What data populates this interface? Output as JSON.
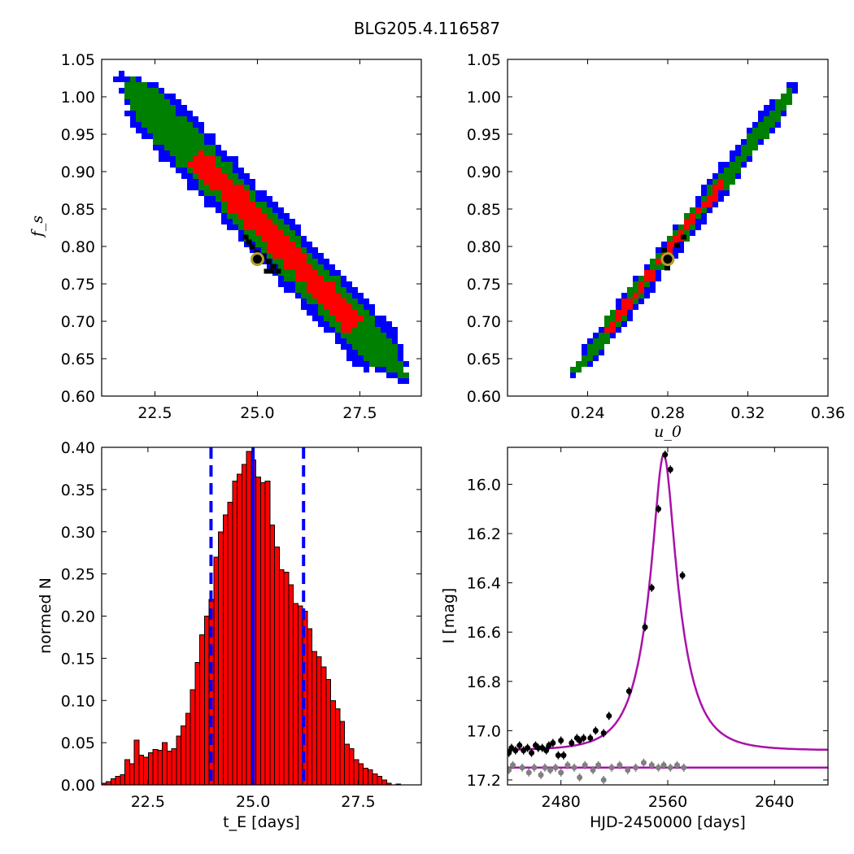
{
  "figure_title": "BLG205.4.116587",
  "chart_data": [
    {
      "id": "tl",
      "type": "heatmap",
      "title": "",
      "xlabel": "",
      "ylabel": "f_s",
      "xlim": [
        21.2,
        29.0
      ],
      "ylim": [
        0.6,
        1.05
      ],
      "xticks": [
        22.5,
        25.0,
        27.5
      ],
      "yticks": [
        0.6,
        0.65,
        0.7,
        0.75,
        0.8,
        0.85,
        0.9,
        0.95,
        1.0,
        1.05
      ],
      "colors": {
        "outer": "#0000ff",
        "middle": "#008000",
        "inner": "#ff0000",
        "best": "#000000"
      },
      "ridge": [
        {
          "x": 21.7,
          "y": 1.025
        },
        {
          "x": 28.6,
          "y": 0.625
        }
      ],
      "regions": [
        {
          "level": "3-sigma",
          "color": "#0000ff",
          "x_range": [
            21.5,
            28.9
          ]
        },
        {
          "level": "2-sigma",
          "color": "#008000",
          "x_range": [
            21.8,
            28.6
          ]
        },
        {
          "level": "1-sigma",
          "color": "#ff0000",
          "x_range": [
            23.5,
            27.4
          ]
        }
      ],
      "best_fit": {
        "x": 25.0,
        "y": 0.783
      }
    },
    {
      "id": "tr",
      "type": "heatmap",
      "title": "",
      "xlabel": "u_0",
      "ylabel": "",
      "xlim": [
        0.2,
        0.36
      ],
      "ylim": [
        0.6,
        1.05
      ],
      "xticks": [
        0.24,
        0.28,
        0.32,
        0.36
      ],
      "yticks": [
        0.6,
        0.65,
        0.7,
        0.75,
        0.8,
        0.85,
        0.9,
        0.95,
        1.0,
        1.05
      ],
      "colors": {
        "outer": "#0000ff",
        "middle": "#008000",
        "inner": "#ff0000",
        "best": "#000000"
      },
      "ridge": [
        {
          "x": 0.232,
          "y": 0.625
        },
        {
          "x": 0.346,
          "y": 1.022
        }
      ],
      "regions": [
        {
          "level": "3-sigma",
          "color": "#0000ff",
          "x_range": [
            0.232,
            0.346
          ]
        },
        {
          "level": "2-sigma",
          "color": "#008000",
          "x_range": [
            0.234,
            0.342
          ]
        },
        {
          "level": "1-sigma",
          "color": "#ff0000",
          "x_range": [
            0.25,
            0.307
          ]
        }
      ],
      "best_fit": {
        "x": 0.28,
        "y": 0.783
      }
    },
    {
      "id": "bl",
      "type": "bar",
      "title": "",
      "xlabel": "t_E [days]",
      "ylabel": "normed N",
      "xlim": [
        21.4,
        29.0
      ],
      "ylim": [
        0.0,
        0.4
      ],
      "xticks": [
        22.5,
        25.0,
        27.5
      ],
      "yticks": [
        0.0,
        0.05,
        0.1,
        0.15,
        0.2,
        0.25,
        0.3,
        0.35,
        0.4
      ],
      "bar_color": "#ff0000",
      "bin_start": 21.4,
      "bin_width": 0.1111,
      "values": [
        0.002,
        0.004,
        0.007,
        0.01,
        0.012,
        0.03,
        0.025,
        0.053,
        0.035,
        0.033,
        0.038,
        0.042,
        0.041,
        0.05,
        0.04,
        0.043,
        0.058,
        0.07,
        0.085,
        0.113,
        0.145,
        0.178,
        0.2,
        0.22,
        0.27,
        0.3,
        0.32,
        0.335,
        0.36,
        0.368,
        0.38,
        0.395,
        0.385,
        0.365,
        0.358,
        0.36,
        0.308,
        0.282,
        0.255,
        0.252,
        0.237,
        0.215,
        0.212,
        0.206,
        0.185,
        0.158,
        0.152,
        0.14,
        0.125,
        0.1,
        0.09,
        0.075,
        0.048,
        0.043,
        0.03,
        0.025,
        0.02,
        0.018,
        0.013,
        0.01,
        0.006,
        0.002,
        0.0,
        0.001,
        0.0
      ],
      "vlines": [
        {
          "x": 24.0,
          "style": "dashed",
          "color": "#0000ff"
        },
        {
          "x": 25.0,
          "style": "solid",
          "color": "#0000ff"
        },
        {
          "x": 26.2,
          "style": "dashed",
          "color": "#0000ff"
        }
      ]
    },
    {
      "id": "br",
      "type": "scatter",
      "title": "",
      "xlabel": "HJD-2450000 [days]",
      "ylabel": "I [mag]",
      "xlim": [
        2440,
        2680
      ],
      "ylim": [
        17.22,
        15.85
      ],
      "xticks": [
        2480,
        2560,
        2640
      ],
      "yticks": [
        16.0,
        16.2,
        16.4,
        16.6,
        16.8,
        17.0,
        17.2
      ],
      "model_color": "#aa11aa",
      "model": {
        "baseline": 17.08,
        "peak": 15.88,
        "t0": 2557,
        "tE": 25.0,
        "u0": 0.28,
        "fs": 0.783
      },
      "model_flat": {
        "value": 17.15,
        "color": "#aa11aa"
      },
      "series": [
        {
          "name": "",
          "color": "#000000",
          "points": [
            {
              "x": 2441,
              "y": 17.09
            },
            {
              "x": 2443,
              "y": 17.07
            },
            {
              "x": 2446,
              "y": 17.08
            },
            {
              "x": 2449,
              "y": 17.06
            },
            {
              "x": 2452,
              "y": 17.08
            },
            {
              "x": 2455,
              "y": 17.07
            },
            {
              "x": 2458,
              "y": 17.09
            },
            {
              "x": 2461,
              "y": 17.06
            },
            {
              "x": 2463,
              "y": 17.07
            },
            {
              "x": 2466,
              "y": 17.07
            },
            {
              "x": 2469,
              "y": 17.08
            },
            {
              "x": 2471,
              "y": 17.06
            },
            {
              "x": 2474,
              "y": 17.05
            },
            {
              "x": 2478,
              "y": 17.1
            },
            {
              "x": 2480,
              "y": 17.04
            },
            {
              "x": 2482,
              "y": 17.1
            },
            {
              "x": 2488,
              "y": 17.05
            },
            {
              "x": 2492,
              "y": 17.03
            },
            {
              "x": 2494,
              "y": 17.04
            },
            {
              "x": 2497,
              "y": 17.03
            },
            {
              "x": 2502,
              "y": 17.03
            },
            {
              "x": 2506,
              "y": 17.0
            },
            {
              "x": 2512,
              "y": 17.01
            },
            {
              "x": 2516,
              "y": 16.94
            },
            {
              "x": 2531,
              "y": 16.84
            },
            {
              "x": 2543,
              "y": 16.58
            },
            {
              "x": 2548,
              "y": 16.42
            },
            {
              "x": 2553,
              "y": 16.1
            },
            {
              "x": 2558,
              "y": 15.88
            },
            {
              "x": 2562,
              "y": 15.94
            },
            {
              "x": 2571,
              "y": 16.37
            }
          ]
        },
        {
          "name": "",
          "color": "#808080",
          "points": [
            {
              "x": 2441,
              "y": 17.16
            },
            {
              "x": 2444,
              "y": 17.14
            },
            {
              "x": 2451,
              "y": 17.15
            },
            {
              "x": 2456,
              "y": 17.17
            },
            {
              "x": 2460,
              "y": 17.15
            },
            {
              "x": 2465,
              "y": 17.18
            },
            {
              "x": 2468,
              "y": 17.15
            },
            {
              "x": 2472,
              "y": 17.16
            },
            {
              "x": 2476,
              "y": 17.15
            },
            {
              "x": 2480,
              "y": 17.17
            },
            {
              "x": 2485,
              "y": 17.14
            },
            {
              "x": 2490,
              "y": 17.15
            },
            {
              "x": 2494,
              "y": 17.19
            },
            {
              "x": 2498,
              "y": 17.14
            },
            {
              "x": 2504,
              "y": 17.16
            },
            {
              "x": 2508,
              "y": 17.14
            },
            {
              "x": 2512,
              "y": 17.2
            },
            {
              "x": 2518,
              "y": 17.15
            },
            {
              "x": 2524,
              "y": 17.14
            },
            {
              "x": 2530,
              "y": 17.16
            },
            {
              "x": 2536,
              "y": 17.15
            },
            {
              "x": 2542,
              "y": 17.13
            },
            {
              "x": 2548,
              "y": 17.14
            },
            {
              "x": 2553,
              "y": 17.15
            },
            {
              "x": 2557,
              "y": 17.14
            },
            {
              "x": 2562,
              "y": 17.15
            },
            {
              "x": 2567,
              "y": 17.14
            },
            {
              "x": 2572,
              "y": 17.15
            }
          ]
        }
      ]
    }
  ]
}
